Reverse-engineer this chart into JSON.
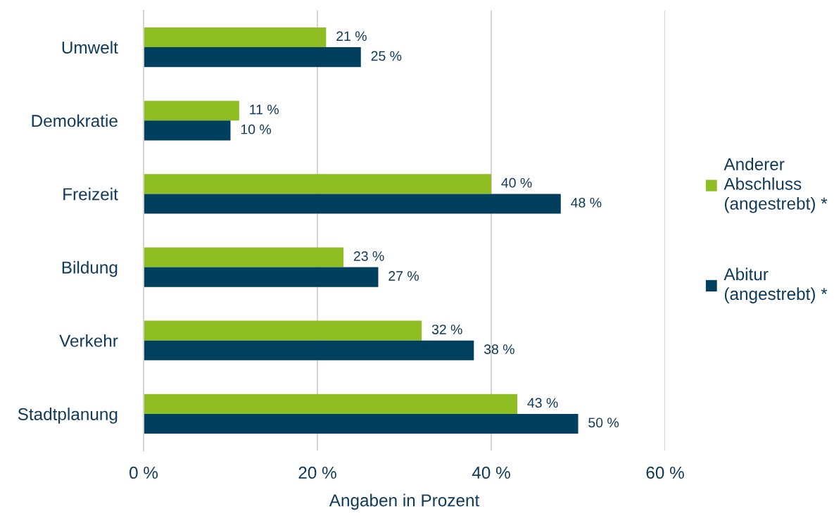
{
  "chart_data": {
    "type": "bar",
    "orientation": "horizontal",
    "categories": [
      "Umwelt",
      "Demokratie",
      "Freizeit",
      "Bildung",
      "Verkehr",
      "Stadtplanung"
    ],
    "series": [
      {
        "name": "Anderer\nAbschluss\n(angestrebt) *",
        "color": "#8fbe23",
        "values": [
          21,
          11,
          40,
          23,
          32,
          43
        ],
        "value_labels": [
          "21 %",
          "11 %",
          "40 %",
          "23 %",
          "32 %",
          "43 %"
        ]
      },
      {
        "name": "Abitur\n(angestrebt) *",
        "color": "#003f5e",
        "values": [
          25,
          10,
          48,
          27,
          38,
          50
        ],
        "value_labels": [
          "25 %",
          "10 %",
          "48 %",
          "27 %",
          "38 %",
          "50 %"
        ]
      }
    ],
    "xlabel": "Angaben in Prozent",
    "xlim": [
      0,
      60
    ],
    "xticks": [
      {
        "value": 0,
        "label": "0 %"
      },
      {
        "value": 20,
        "label": "20 %"
      },
      {
        "value": 40,
        "label": "40 %"
      },
      {
        "value": 60,
        "label": "60 %"
      }
    ],
    "grid": "x",
    "legend": "right"
  }
}
